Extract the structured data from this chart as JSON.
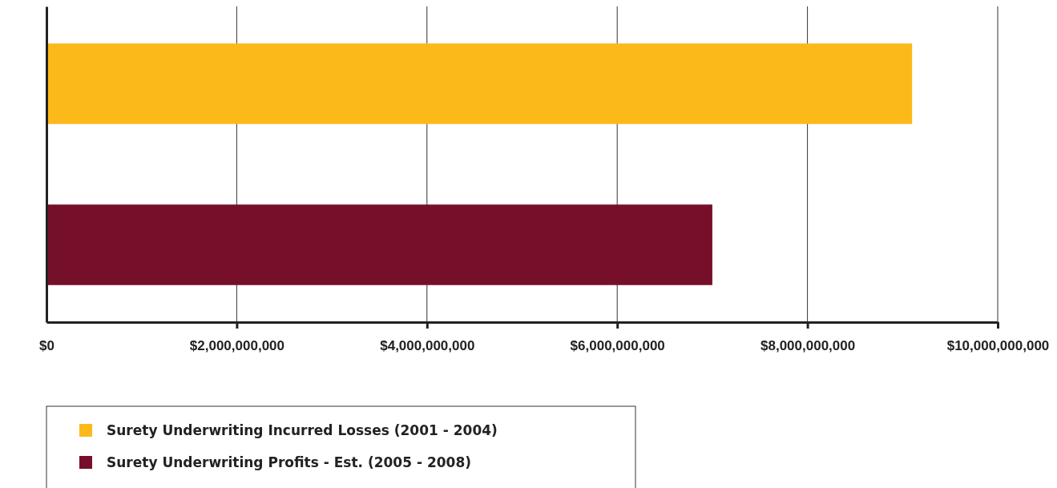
{
  "chart_data": {
    "type": "bar",
    "orientation": "horizontal",
    "categories": [
      null,
      null
    ],
    "series": [
      {
        "name": "Surety Underwriting Incurred Losses (2001 - 2004)",
        "color": "#fbb91a",
        "values": [
          9100000000,
          null
        ]
      },
      {
        "name": "Surety Underwriting Profits - Est. (2005 - 2008)",
        "color": "#750f2a",
        "values": [
          null,
          7000000000
        ]
      }
    ],
    "xlim": [
      0,
      10000000000
    ],
    "xticks": [
      {
        "value": 0,
        "label": "$0"
      },
      {
        "value": 2000000000,
        "label": "$2,000,000,000"
      },
      {
        "value": 4000000000,
        "label": "$4,000,000,000"
      },
      {
        "value": 6000000000,
        "label": "$6,000,000,000"
      },
      {
        "value": 8000000000,
        "label": "$8,000,000,000"
      },
      {
        "value": 10000000000,
        "label": "$10,000,000,000"
      }
    ],
    "grid": "x",
    "legend": "bottom left"
  }
}
